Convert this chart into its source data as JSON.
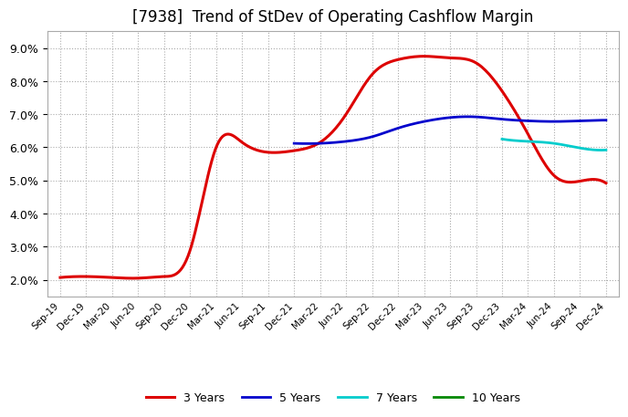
{
  "title": "[7938]  Trend of StDev of Operating Cashflow Margin",
  "title_fontsize": 12,
  "background_color": "#ffffff",
  "plot_bg_color": "#ffffff",
  "grid_color": "#aaaaaa",
  "ylim": [
    0.015,
    0.095
  ],
  "yticks": [
    0.02,
    0.03,
    0.04,
    0.05,
    0.06,
    0.07,
    0.08,
    0.09
  ],
  "x_labels": [
    "Sep-19",
    "Dec-19",
    "Mar-20",
    "Jun-20",
    "Sep-20",
    "Dec-20",
    "Mar-21",
    "Jun-21",
    "Sep-21",
    "Dec-21",
    "Mar-22",
    "Jun-22",
    "Sep-22",
    "Dec-22",
    "Mar-23",
    "Jun-23",
    "Sep-23",
    "Dec-23",
    "Mar-24",
    "Jun-24",
    "Sep-24",
    "Dec-24"
  ],
  "series": {
    "3 Years": {
      "color": "#dd0000",
      "linewidth": 2.2,
      "values": [
        0.0207,
        0.021,
        0.0207,
        0.0205,
        0.021,
        0.029,
        0.06,
        0.0615,
        0.0585,
        0.059,
        0.0615,
        0.07,
        0.082,
        0.0865,
        0.0875,
        0.087,
        0.0855,
        0.077,
        0.064,
        0.0515,
        0.0498,
        0.0492
      ]
    },
    "5 Years": {
      "color": "#0000cc",
      "linewidth": 2.0,
      "values": [
        null,
        null,
        null,
        null,
        null,
        null,
        null,
        null,
        null,
        0.0612,
        0.0612,
        0.0618,
        0.0632,
        0.0658,
        0.0678,
        0.069,
        0.0692,
        0.0685,
        0.068,
        0.0678,
        0.068,
        0.0682
      ]
    },
    "7 Years": {
      "color": "#00cccc",
      "linewidth": 2.0,
      "values": [
        null,
        null,
        null,
        null,
        null,
        null,
        null,
        null,
        null,
        null,
        null,
        null,
        null,
        null,
        null,
        null,
        null,
        0.0625,
        0.0618,
        0.0612,
        0.0598,
        0.0592
      ]
    },
    "10 Years": {
      "color": "#008800",
      "linewidth": 2.0,
      "values": [
        null,
        null,
        null,
        null,
        null,
        null,
        null,
        null,
        null,
        null,
        null,
        null,
        null,
        null,
        null,
        null,
        null,
        null,
        null,
        null,
        null,
        null
      ]
    }
  },
  "legend_labels": [
    "3 Years",
    "5 Years",
    "7 Years",
    "10 Years"
  ],
  "legend_colors": [
    "#dd0000",
    "#0000cc",
    "#00cccc",
    "#008800"
  ]
}
